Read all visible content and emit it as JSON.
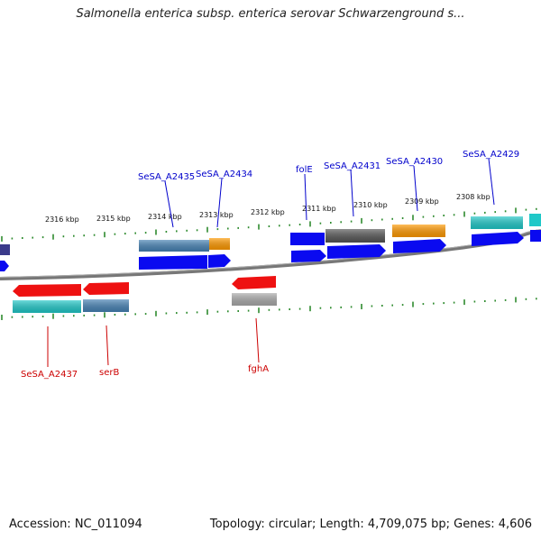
{
  "title": "Salmonella enterica subsp. enterica serovar Schwarzenground s...",
  "footer": {
    "accession": "Accession: NC_011094",
    "summary": "Topology: circular; Length: 4,709,075 bp; Genes: 4,606"
  },
  "colors": {
    "background": "#ffffff",
    "backbone": "#777777",
    "tick": "#2e8b2e",
    "forward_label": "#0000cc",
    "reverse_label": "#cc0000",
    "gene_blue": "#0a0af0",
    "gene_steel": "#4682b4",
    "gene_orange": "#ff9900",
    "gene_gray": "#555555",
    "gene_lightgray": "#aaaaaa",
    "gene_cyan": "#20c8c8",
    "gene_red": "#ee1111"
  },
  "kbp_labels": [
    "2316 kbp",
    "2315 kbp",
    "2314 kbp",
    "2313 kbp",
    "2312 kbp",
    "2311 kbp",
    "2310 kbp",
    "2309 kbp",
    "2308 kbp"
  ],
  "forward_labels": [
    "SeSA_A2435",
    "SeSA_A2434",
    "folE",
    "SeSA_A2431",
    "SeSA_A2430",
    "SeSA_A2429"
  ],
  "reverse_labels": [
    "SeSA_A2437",
    "serB",
    "fghA"
  ]
}
